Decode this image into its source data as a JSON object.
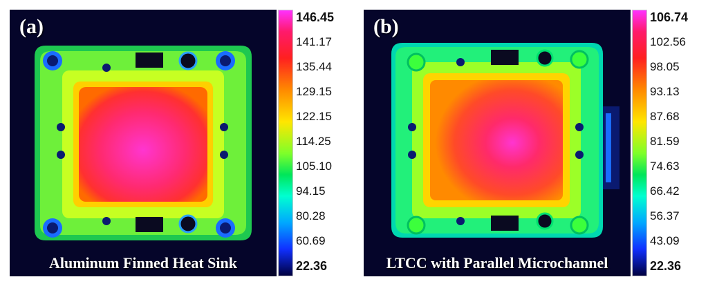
{
  "panels": [
    {
      "letter": "(a)",
      "caption": "Aluminum Finned Heat Sink",
      "scale": [
        "146.45",
        "141.17",
        "135.44",
        "129.15",
        "122.15",
        "114.25",
        "105.10",
        "94.15",
        "80.28",
        "60.69",
        "22.36"
      ]
    },
    {
      "letter": "(b)",
      "caption": "LTCC with Parallel Microchannel",
      "scale": [
        "106.74",
        "102.56",
        "98.05",
        "93.13",
        "87.68",
        "81.59",
        "74.63",
        "66.42",
        "56.37",
        "43.09",
        "22.36"
      ]
    }
  ]
}
